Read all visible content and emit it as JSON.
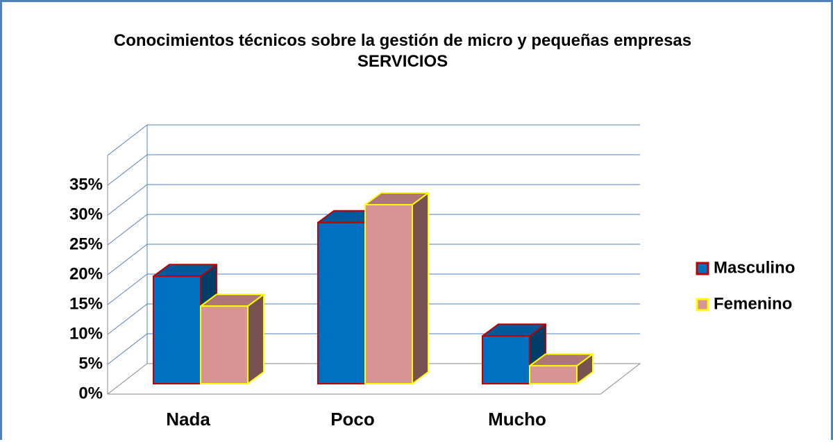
{
  "chart_data": {
    "type": "bar3d",
    "title": "Conocimientos técnicos sobre la gestión de micro y pequeñas empresas",
    "subtitle": "SERVICIOS",
    "categories": [
      "Nada",
      "Poco",
      "Mucho"
    ],
    "series": [
      {
        "name": "Masculino",
        "color": "#0070c0",
        "edgecolor": "#c00000",
        "values": [
          18,
          27,
          8
        ]
      },
      {
        "name": "Femenino",
        "color": "#d99594",
        "edgecolor": "#ffff00",
        "values": [
          13,
          30,
          3
        ]
      }
    ],
    "ylim": [
      0,
      40
    ],
    "yticks": [
      {
        "value": 0,
        "label": "0%"
      },
      {
        "value": 5,
        "label": "5%"
      },
      {
        "value": 10,
        "label": "10%"
      },
      {
        "value": 15,
        "label": "15%"
      },
      {
        "value": 20,
        "label": "20%"
      },
      {
        "value": 25,
        "label": "25%"
      },
      {
        "value": 30,
        "label": "30%"
      },
      {
        "value": 35,
        "label": "35%"
      }
    ],
    "grid": true,
    "gridcolor": "#4f81bd",
    "legend": "right"
  }
}
